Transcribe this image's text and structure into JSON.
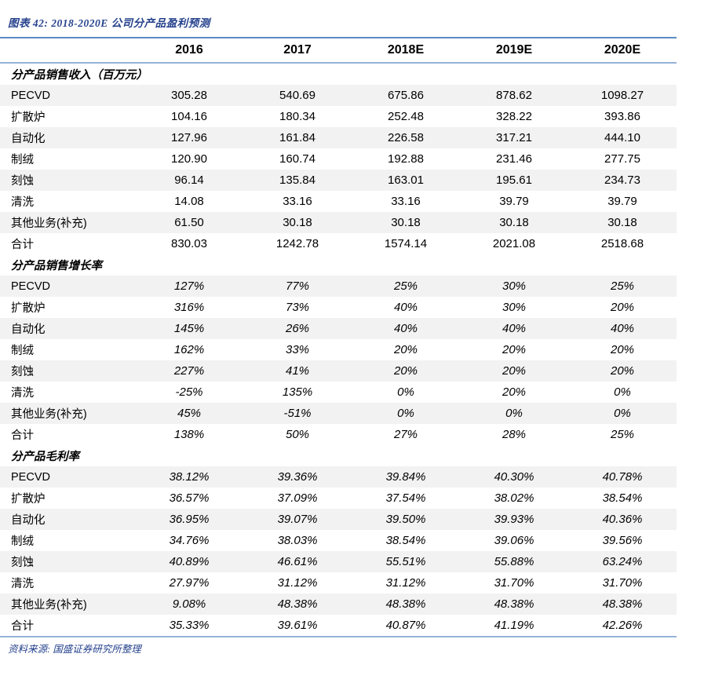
{
  "title": "图表 42:  2018-2020E 公司分产品盈利预测",
  "footer": "资料来源: 国盛证券研究所整理",
  "colors": {
    "accent_blue": "#26428D",
    "rule_dark_blue": "#5B8AC5",
    "rule_light_blue": "#95B3D7",
    "stripe_gray": "#F2F2F2",
    "text_black": "#000000",
    "background": "#FFFFFF"
  },
  "table": {
    "columns": [
      "2016",
      "2017",
      "2018E",
      "2019E",
      "2020E"
    ],
    "sections": [
      {
        "header": "分产品销售收入（百万元）",
        "italic_values": false,
        "rows": [
          {
            "label": "PECVD",
            "values": [
              "305.28",
              "540.69",
              "675.86",
              "878.62",
              "1098.27"
            ]
          },
          {
            "label": "扩散炉",
            "values": [
              "104.16",
              "180.34",
              "252.48",
              "328.22",
              "393.86"
            ]
          },
          {
            "label": "自动化",
            "values": [
              "127.96",
              "161.84",
              "226.58",
              "317.21",
              "444.10"
            ]
          },
          {
            "label": "制绒",
            "values": [
              "120.90",
              "160.74",
              "192.88",
              "231.46",
              "277.75"
            ]
          },
          {
            "label": "刻蚀",
            "values": [
              "96.14",
              "135.84",
              "163.01",
              "195.61",
              "234.73"
            ]
          },
          {
            "label": "清洗",
            "values": [
              "14.08",
              "33.16",
              "33.16",
              "39.79",
              "39.79"
            ]
          },
          {
            "label": "其他业务(补充)",
            "values": [
              "61.50",
              "30.18",
              "30.18",
              "30.18",
              "30.18"
            ]
          },
          {
            "label": "合计",
            "values": [
              "830.03",
              "1242.78",
              "1574.14",
              "2021.08",
              "2518.68"
            ]
          }
        ]
      },
      {
        "header": "分产品销售增长率",
        "italic_values": true,
        "rows": [
          {
            "label": "PECVD",
            "values": [
              "127%",
              "77%",
              "25%",
              "30%",
              "25%"
            ]
          },
          {
            "label": "扩散炉",
            "values": [
              "316%",
              "73%",
              "40%",
              "30%",
              "20%"
            ]
          },
          {
            "label": "自动化",
            "values": [
              "145%",
              "26%",
              "40%",
              "40%",
              "40%"
            ]
          },
          {
            "label": "制绒",
            "values": [
              "162%",
              "33%",
              "20%",
              "20%",
              "20%"
            ]
          },
          {
            "label": "刻蚀",
            "values": [
              "227%",
              "41%",
              "20%",
              "20%",
              "20%"
            ]
          },
          {
            "label": "清洗",
            "values": [
              "-25%",
              "135%",
              "0%",
              "20%",
              "0%"
            ]
          },
          {
            "label": "其他业务(补充)",
            "values": [
              "45%",
              "-51%",
              "0%",
              "0%",
              "0%"
            ]
          },
          {
            "label": "合计",
            "values": [
              "138%",
              "50%",
              "27%",
              "28%",
              "25%"
            ]
          }
        ]
      },
      {
        "header": "分产品毛利率",
        "italic_values": true,
        "rows": [
          {
            "label": "PECVD",
            "values": [
              "38.12%",
              "39.36%",
              "39.84%",
              "40.30%",
              "40.78%"
            ]
          },
          {
            "label": "扩散炉",
            "values": [
              "36.57%",
              "37.09%",
              "37.54%",
              "38.02%",
              "38.54%"
            ]
          },
          {
            "label": "自动化",
            "values": [
              "36.95%",
              "39.07%",
              "39.50%",
              "39.93%",
              "40.36%"
            ]
          },
          {
            "label": "制绒",
            "values": [
              "34.76%",
              "38.03%",
              "38.54%",
              "39.06%",
              "39.56%"
            ]
          },
          {
            "label": "刻蚀",
            "values": [
              "40.89%",
              "46.61%",
              "55.51%",
              "55.88%",
              "63.24%"
            ]
          },
          {
            "label": "清洗",
            "values": [
              "27.97%",
              "31.12%",
              "31.12%",
              "31.70%",
              "31.70%"
            ]
          },
          {
            "label": "其他业务(补充)",
            "values": [
              "9.08%",
              "48.38%",
              "48.38%",
              "48.38%",
              "48.38%"
            ]
          },
          {
            "label": "合计",
            "values": [
              "35.33%",
              "39.61%",
              "40.87%",
              "41.19%",
              "42.26%"
            ]
          }
        ]
      }
    ]
  }
}
